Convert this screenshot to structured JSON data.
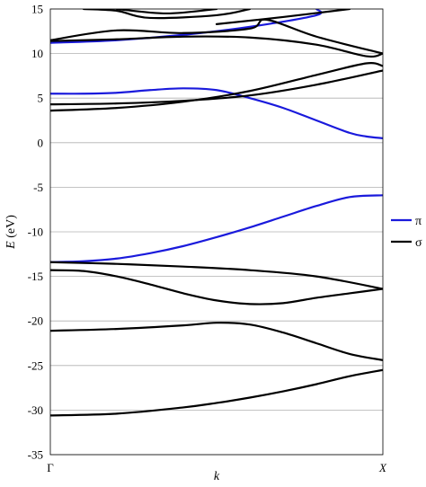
{
  "chart_data": {
    "type": "line",
    "title": "",
    "xlabel": "k",
    "ylabel": "E (eV)",
    "ylabel_italic_part": "E",
    "ylabel_unit_part": " (eV)",
    "ylim": [
      -35,
      15
    ],
    "yticks": [
      15,
      10,
      5,
      0,
      -5,
      -10,
      -15,
      -20,
      -25,
      -30,
      -35
    ],
    "xlim": [
      0,
      1
    ],
    "xtick_labels": [
      "Γ",
      "X"
    ],
    "grid": "horizontal",
    "legend_position": "right",
    "legend": [
      {
        "name": "π",
        "color": "#1a1adc"
      },
      {
        "name": "σ",
        "color": "#000000"
      }
    ],
    "series": [
      {
        "name": "π",
        "color": "#1a1adc",
        "points": [
          [
            0,
            5.5
          ],
          [
            0.1,
            5.5
          ],
          [
            0.2,
            5.6
          ],
          [
            0.3,
            5.9
          ],
          [
            0.4,
            6.1
          ],
          [
            0.5,
            5.9
          ],
          [
            0.6,
            5.0
          ],
          [
            0.7,
            3.9
          ],
          [
            0.8,
            2.5
          ],
          [
            0.9,
            1.1
          ],
          [
            0.95,
            0.7
          ],
          [
            1.0,
            0.5
          ]
        ]
      },
      {
        "name": "π",
        "color": "#1a1adc",
        "points": [
          [
            0,
            -13.4
          ],
          [
            0.1,
            -13.3
          ],
          [
            0.2,
            -13.0
          ],
          [
            0.3,
            -12.4
          ],
          [
            0.4,
            -11.6
          ],
          [
            0.5,
            -10.6
          ],
          [
            0.6,
            -9.5
          ],
          [
            0.7,
            -8.3
          ],
          [
            0.8,
            -7.1
          ],
          [
            0.9,
            -6.1
          ],
          [
            1.0,
            -5.9
          ]
        ]
      },
      {
        "name": "π",
        "color": "#1a1adc",
        "points": [
          [
            0,
            11.2
          ],
          [
            0.2,
            11.5
          ],
          [
            0.4,
            12.1
          ],
          [
            0.6,
            13.0
          ],
          [
            0.8,
            14.3
          ],
          [
            0.8,
            15.0
          ]
        ]
      },
      {
        "name": "σ",
        "color": "#000000",
        "points": [
          [
            0,
            4.3
          ],
          [
            0.2,
            4.4
          ],
          [
            0.4,
            4.7
          ],
          [
            0.6,
            5.3
          ],
          [
            0.8,
            6.5
          ],
          [
            1.0,
            8.1
          ]
        ]
      },
      {
        "name": "σ",
        "color": "#000000",
        "points": [
          [
            0,
            3.6
          ],
          [
            0.2,
            3.9
          ],
          [
            0.4,
            4.6
          ],
          [
            0.6,
            5.8
          ],
          [
            0.8,
            7.6
          ],
          [
            0.95,
            8.9
          ],
          [
            1.0,
            8.6
          ]
        ]
      },
      {
        "name": "σ",
        "color": "#000000",
        "points": [
          [
            0,
            11.4
          ],
          [
            0.2,
            11.6
          ],
          [
            0.4,
            11.9
          ],
          [
            0.6,
            11.8
          ],
          [
            0.8,
            11.0
          ],
          [
            0.95,
            9.7
          ],
          [
            1.0,
            10.0
          ]
        ]
      },
      {
        "name": "σ",
        "color": "#000000",
        "points": [
          [
            0,
            11.5
          ],
          [
            0.2,
            12.6
          ],
          [
            0.4,
            12.3
          ],
          [
            0.6,
            12.8
          ],
          [
            0.65,
            13.8
          ],
          [
            0.8,
            11.9
          ],
          [
            1.0,
            10.0
          ]
        ]
      },
      {
        "name": "σ",
        "color": "#000000",
        "points": [
          [
            0.1,
            15.0
          ],
          [
            0.2,
            14.8
          ],
          [
            0.3,
            14.0
          ],
          [
            0.5,
            14.3
          ],
          [
            0.6,
            15.0
          ]
        ]
      },
      {
        "name": "σ",
        "color": "#000000",
        "points": [
          [
            0.2,
            15.0
          ],
          [
            0.35,
            14.5
          ],
          [
            0.5,
            15.0
          ]
        ]
      },
      {
        "name": "σ",
        "color": "#000000",
        "points": [
          [
            0.5,
            13.3
          ],
          [
            0.7,
            14.1
          ],
          [
            0.9,
            15.0
          ]
        ]
      },
      {
        "name": "σ",
        "color": "#000000",
        "points": [
          [
            0,
            -13.4
          ],
          [
            0.2,
            -13.6
          ],
          [
            0.4,
            -13.9
          ],
          [
            0.6,
            -14.3
          ],
          [
            0.8,
            -15.0
          ],
          [
            1.0,
            -16.4
          ]
        ]
      },
      {
        "name": "σ",
        "color": "#000000",
        "points": [
          [
            0,
            -14.3
          ],
          [
            0.1,
            -14.4
          ],
          [
            0.2,
            -15.0
          ],
          [
            0.3,
            -15.9
          ],
          [
            0.4,
            -16.9
          ],
          [
            0.5,
            -17.7
          ],
          [
            0.6,
            -18.1
          ],
          [
            0.7,
            -18.0
          ],
          [
            0.8,
            -17.4
          ],
          [
            0.9,
            -16.9
          ],
          [
            1.0,
            -16.4
          ]
        ]
      },
      {
        "name": "σ",
        "color": "#000000",
        "points": [
          [
            0,
            -21.1
          ],
          [
            0.2,
            -20.9
          ],
          [
            0.4,
            -20.5
          ],
          [
            0.5,
            -20.2
          ],
          [
            0.6,
            -20.4
          ],
          [
            0.7,
            -21.3
          ],
          [
            0.8,
            -22.5
          ],
          [
            0.9,
            -23.7
          ],
          [
            1.0,
            -24.4
          ]
        ]
      },
      {
        "name": "σ",
        "color": "#000000",
        "points": [
          [
            0,
            -30.6
          ],
          [
            0.2,
            -30.4
          ],
          [
            0.4,
            -29.7
          ],
          [
            0.5,
            -29.2
          ],
          [
            0.6,
            -28.6
          ],
          [
            0.7,
            -27.9
          ],
          [
            0.8,
            -27.1
          ],
          [
            0.9,
            -26.2
          ],
          [
            1.0,
            -25.5
          ]
        ]
      }
    ]
  }
}
